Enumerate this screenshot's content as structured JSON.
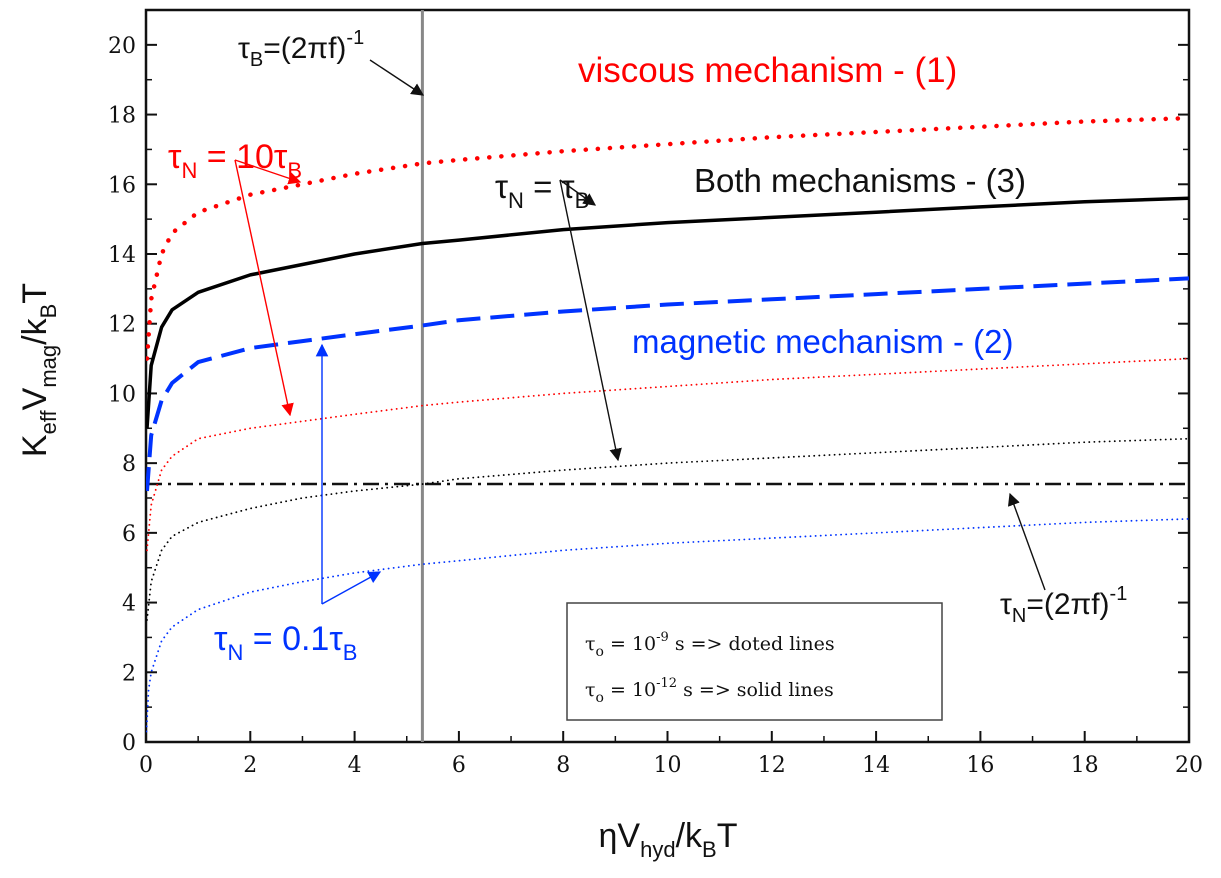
{
  "chart_data": {
    "type": "line",
    "title": "",
    "xlim": [
      0,
      20
    ],
    "ylim": [
      0,
      21
    ],
    "x_ticks": [
      0,
      2,
      4,
      6,
      8,
      10,
      12,
      14,
      16,
      18,
      20
    ],
    "y_ticks": [
      0,
      2,
      4,
      6,
      8,
      10,
      12,
      14,
      16,
      18,
      20
    ],
    "x_tick_labels": [
      "0",
      "2",
      "4",
      "6",
      "8",
      "10",
      "12",
      "14",
      "16",
      "18",
      "20"
    ],
    "y_tick_labels": [
      "0",
      "2",
      "4",
      "6",
      "8",
      "10",
      "12",
      "14",
      "16",
      "18",
      "20"
    ],
    "xlabel": {
      "a": "ηV",
      "b": "hyd",
      "c": "/k",
      "d": "B",
      "e": "T"
    },
    "ylabel": {
      "a": "K",
      "b": "eff",
      "c": "V",
      "d": "mag",
      "e": "/k",
      "f": "B",
      "g": "T"
    },
    "grid": false,
    "reference_lines": {
      "vertical_x": 5.3,
      "horizontal_y": 7.4
    },
    "series": [
      {
        "name": "viscous mechanism - (1)",
        "key": "viscous_1e12",
        "color": "#ff0000",
        "style": "dotted-thick",
        "x": [
          0.02,
          0.1,
          0.3,
          0.5,
          1,
          2,
          3,
          4,
          5.3,
          6,
          8,
          10,
          12,
          14,
          16,
          18,
          20
        ],
        "y": [
          11.0,
          12.7,
          14.0,
          14.6,
          15.2,
          15.7,
          16.0,
          16.3,
          16.6,
          16.7,
          16.95,
          17.15,
          17.35,
          17.5,
          17.65,
          17.8,
          17.9
        ]
      },
      {
        "name": "Both mechanisms - (3)",
        "key": "both_1e12",
        "color": "#000000",
        "style": "solid",
        "x": [
          0.02,
          0.1,
          0.3,
          0.5,
          1,
          2,
          3,
          4,
          5.3,
          6,
          8,
          10,
          12,
          14,
          16,
          18,
          20
        ],
        "y": [
          9.0,
          10.8,
          11.9,
          12.4,
          12.9,
          13.4,
          13.7,
          14.0,
          14.3,
          14.4,
          14.7,
          14.9,
          15.05,
          15.2,
          15.35,
          15.5,
          15.6
        ]
      },
      {
        "name": "magnetic mechanism - (2)",
        "key": "magnetic_1e12",
        "color": "#0033ff",
        "style": "dashed",
        "x": [
          0.02,
          0.1,
          0.3,
          0.5,
          1,
          2,
          3,
          4,
          5.3,
          6,
          8,
          10,
          12,
          14,
          16,
          18,
          20
        ],
        "y": [
          7.2,
          8.8,
          9.8,
          10.3,
          10.9,
          11.3,
          11.5,
          11.7,
          11.95,
          12.1,
          12.35,
          12.55,
          12.7,
          12.85,
          13.0,
          13.15,
          13.3
        ]
      },
      {
        "name": "",
        "key": "viscous_1e9",
        "color": "#ff0000",
        "style": "dotted-thin",
        "x": [
          0.02,
          0.1,
          0.3,
          0.5,
          1,
          2,
          3,
          4,
          5.3,
          6,
          8,
          10,
          12,
          14,
          16,
          18,
          20
        ],
        "y": [
          5.5,
          6.8,
          7.8,
          8.2,
          8.7,
          9.0,
          9.2,
          9.4,
          9.65,
          9.75,
          10.0,
          10.2,
          10.4,
          10.55,
          10.7,
          10.85,
          11.0
        ]
      },
      {
        "name": "",
        "key": "both_1e9",
        "color": "#000000",
        "style": "dotted-thin",
        "x": [
          0.02,
          0.1,
          0.3,
          0.5,
          1,
          2,
          3,
          4,
          5.3,
          6,
          8,
          10,
          12,
          14,
          16,
          18,
          20
        ],
        "y": [
          3.5,
          4.6,
          5.5,
          5.9,
          6.3,
          6.7,
          7.0,
          7.2,
          7.4,
          7.55,
          7.8,
          8.0,
          8.15,
          8.3,
          8.45,
          8.6,
          8.7
        ]
      },
      {
        "name": "",
        "key": "magnetic_1e9",
        "color": "#0033ff",
        "style": "dotted-thin",
        "x": [
          0.01,
          0.05,
          0.1,
          0.3,
          0.5,
          1,
          2,
          3,
          4,
          5.3,
          6,
          8,
          10,
          12,
          14,
          16,
          18,
          20
        ],
        "y": [
          0.3,
          1.5,
          2.0,
          2.9,
          3.3,
          3.8,
          4.3,
          4.6,
          4.85,
          5.1,
          5.2,
          5.5,
          5.7,
          5.85,
          6.0,
          6.15,
          6.3,
          6.4
        ]
      }
    ],
    "annotations": {
      "vertical_line_label": {
        "a": "τ",
        "b": "B",
        "c": "=(2πf)",
        "d": "-1"
      },
      "viscous_label": "viscous mechanism - (1)",
      "both_label": "Both mechanisms - (3)",
      "magnetic_label": "magnetic mechanism - (2)",
      "ten_tau": {
        "a": "τ",
        "b": "N",
        "c": " = 10τ",
        "d": "B"
      },
      "equal_tau": {
        "a": "τ",
        "b": "N",
        "c": " = τ",
        "d": "B"
      },
      "tenth_tau": {
        "a": "τ",
        "b": "N",
        "c": " = 0.1τ",
        "d": "B"
      },
      "horizontal_line_label": {
        "a": "τ",
        "b": "N",
        "c": "=(2πf)",
        "d": "-1"
      }
    },
    "legend": {
      "position": "bottom-right",
      "line1": {
        "a": "τ",
        "b": "o",
        "c": " = 10",
        "d": "-9",
        "e": " s => doted lines"
      },
      "line2": {
        "a": "τ",
        "b": "o",
        "c": " = 10",
        "d": "-12",
        "e": " s => solid lines"
      }
    }
  }
}
